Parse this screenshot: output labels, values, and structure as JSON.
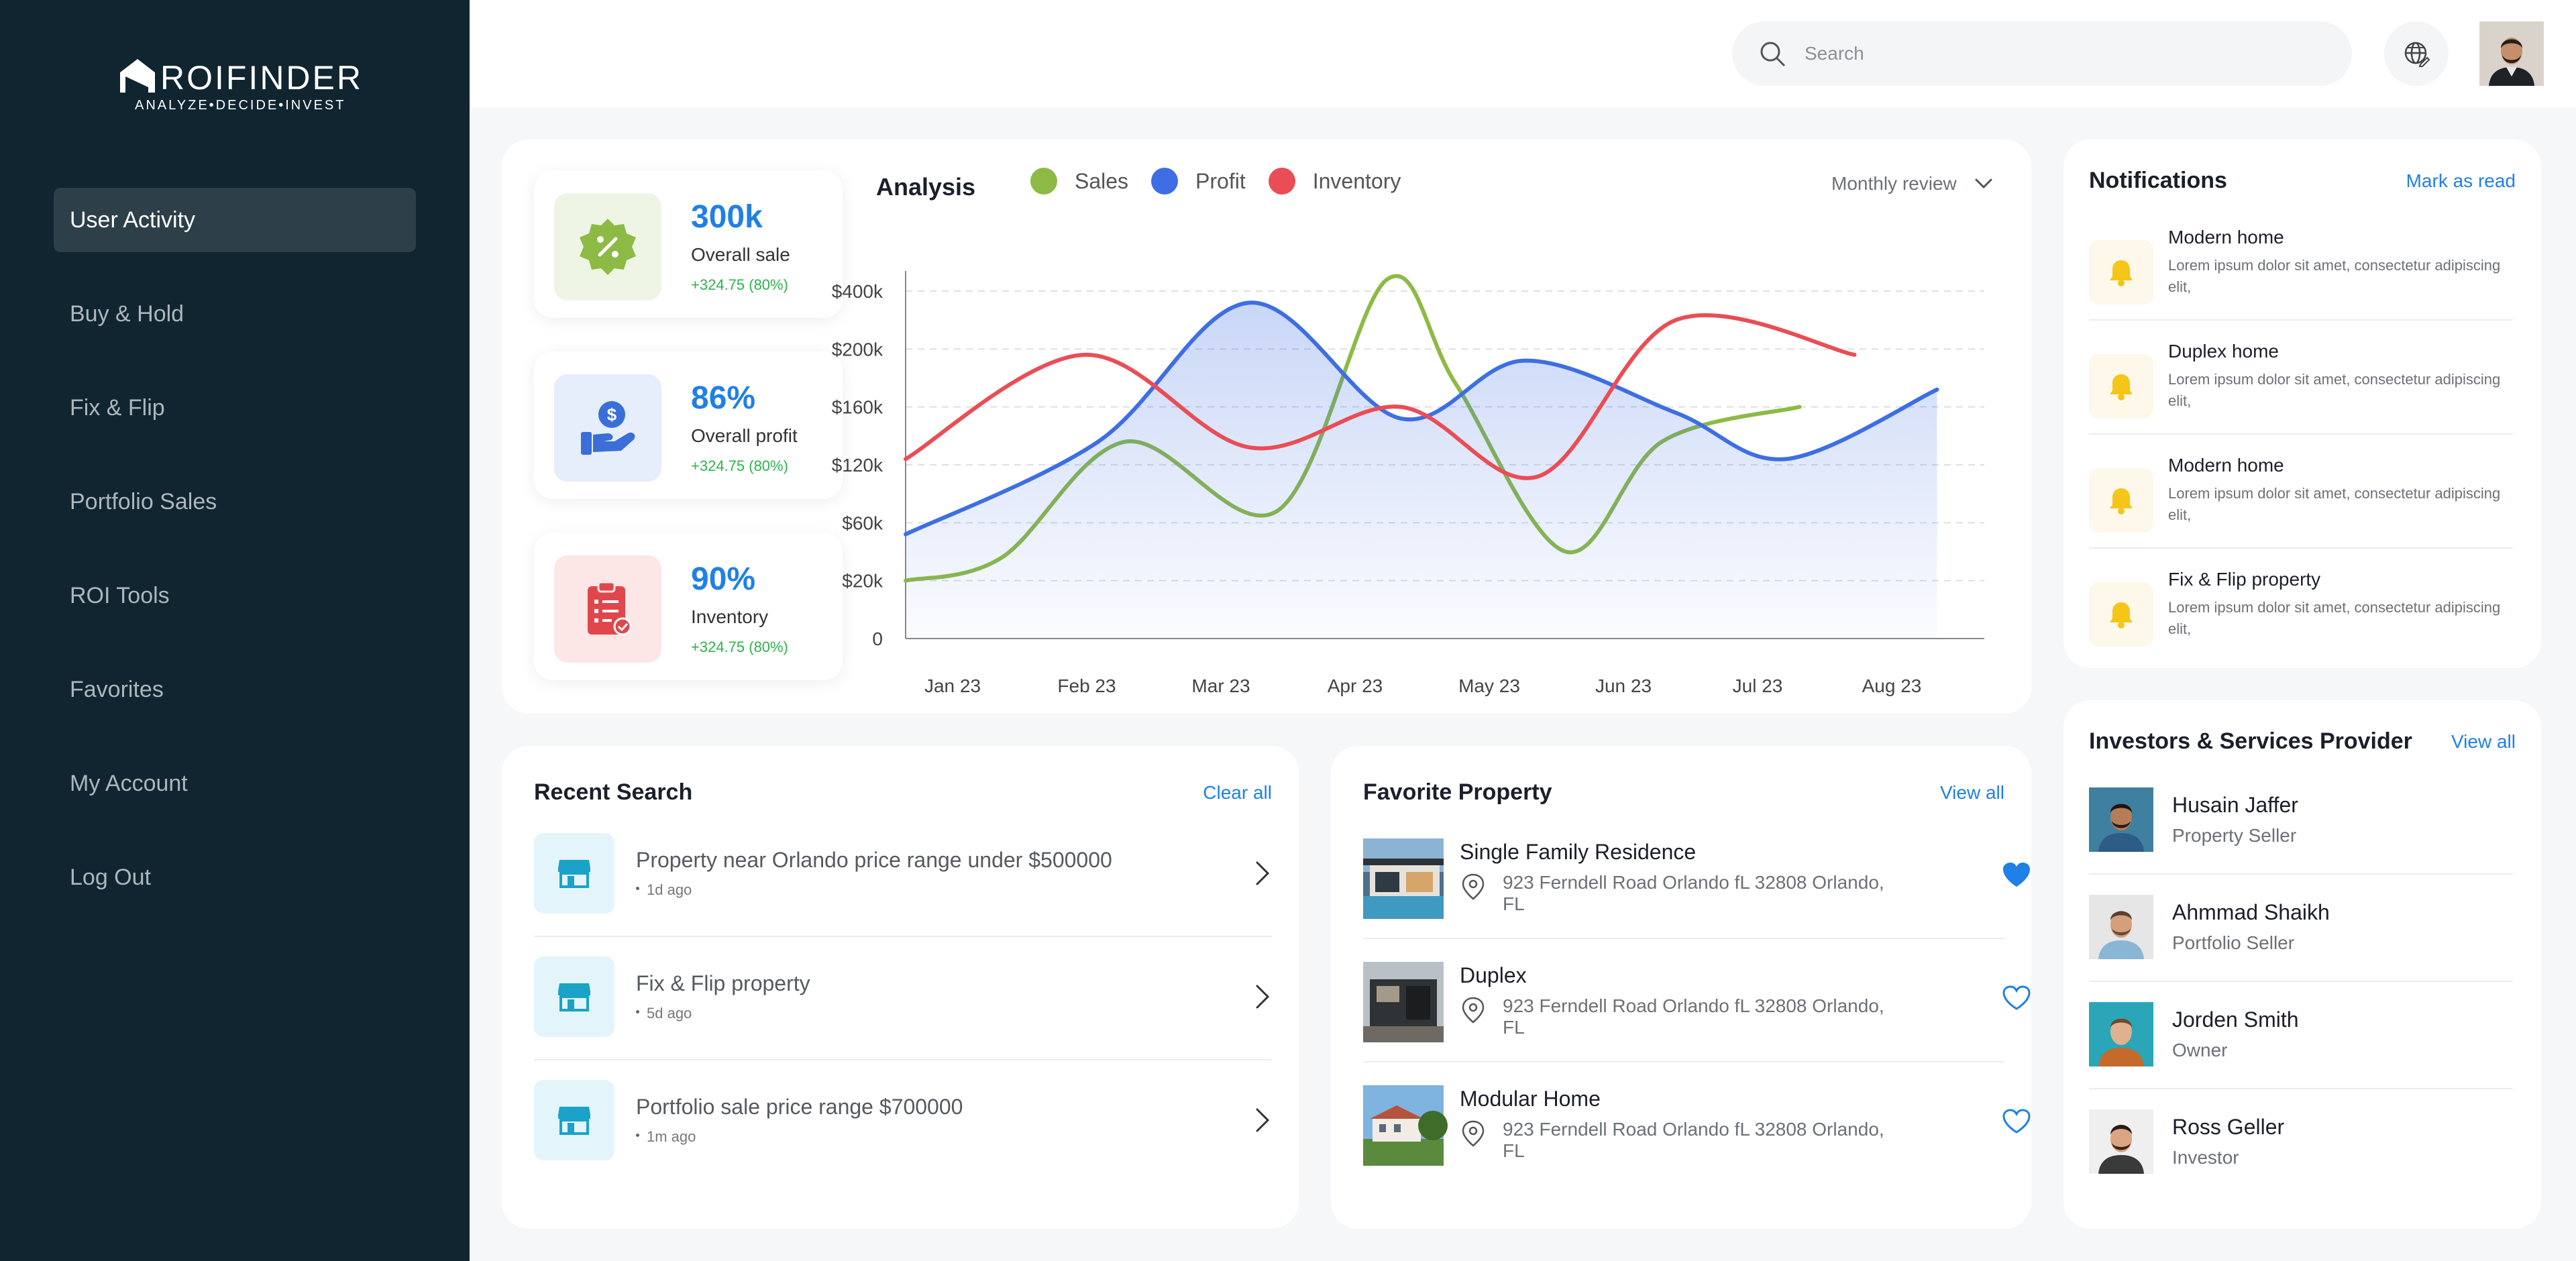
{
  "brand": {
    "name": "ROIFINDER",
    "tagline": "ANALYZE•DECIDE•INVEST"
  },
  "sidebar": {
    "items": [
      {
        "label": "User Activity",
        "active": true
      },
      {
        "label": "Buy & Hold"
      },
      {
        "label": "Fix & Flip"
      },
      {
        "label": "Portfolio Sales"
      },
      {
        "label": "ROI Tools"
      },
      {
        "label": "Favorites"
      },
      {
        "label": "My Account"
      },
      {
        "label": "Log Out"
      }
    ]
  },
  "topbar": {
    "search_placeholder": "Search",
    "globe_icon": "globe-edit-icon"
  },
  "stats": [
    {
      "value": "300k",
      "label": "Overall sale",
      "change": "+324.75 (80%)",
      "icon": "discount-badge-icon",
      "bg": "#eef5e4",
      "color": "#8cba45"
    },
    {
      "value": "86%",
      "label": "Overall profit",
      "change": "+324.75 (80%)",
      "icon": "hand-dollar-icon",
      "bg": "#e6edfb",
      "color": "#3a6fd8"
    },
    {
      "value": "90%",
      "label": "Inventory",
      "change": "+324.75 (80%)",
      "icon": "clipboard-check-icon",
      "bg": "#fde6e6",
      "color": "#e0474c"
    }
  ],
  "analysis": {
    "title": "Analysis",
    "review_label": "Monthly review"
  },
  "chart_data": {
    "type": "line",
    "title": "Analysis",
    "x": [
      "Jan 23",
      "Feb 23",
      "Mar 23",
      "Apr 23",
      "May 23",
      "Jun 23",
      "Jul 23",
      "Aug 23"
    ],
    "y_ticks": [
      "$400k",
      "$200k",
      "$160k",
      "$120k",
      "$60k",
      "$20k",
      "0"
    ],
    "grid": true,
    "legend_position": "top",
    "series": [
      {
        "name": "Sales",
        "color": "#8dba45",
        "points": [
          [
            0,
            1.0
          ],
          [
            0.7,
            1.4
          ],
          [
            1.6,
            3.4
          ],
          [
            2.7,
            2.2
          ],
          [
            3.5,
            6.2
          ],
          [
            4.0,
            4.4
          ],
          [
            4.8,
            1.5
          ],
          [
            5.5,
            3.4
          ],
          [
            6.5,
            4.0
          ]
        ]
      },
      {
        "name": "Profit",
        "color": "#3d6ee3",
        "points": [
          [
            0,
            1.8
          ],
          [
            1.4,
            3.4
          ],
          [
            2.5,
            5.8
          ],
          [
            3.6,
            3.8
          ],
          [
            4.5,
            4.8
          ],
          [
            5.6,
            3.9
          ],
          [
            6.4,
            3.1
          ],
          [
            7.5,
            4.3
          ]
        ]
      },
      {
        "name": "Inventory",
        "color": "#ea4d55",
        "points": [
          [
            0,
            3.1
          ],
          [
            1.3,
            4.9
          ],
          [
            2.5,
            3.3
          ],
          [
            3.6,
            4.0
          ],
          [
            4.6,
            2.8
          ],
          [
            5.6,
            5.5
          ],
          [
            6.9,
            4.9
          ]
        ]
      }
    ]
  },
  "recent_search": {
    "title": "Recent Search",
    "action": "Clear all",
    "items": [
      {
        "title": "Property near Orlando price range under $500000",
        "time": "1d ago"
      },
      {
        "title": "Fix & Flip property",
        "time": "5d ago"
      },
      {
        "title": "Portfolio sale price range $700000",
        "time": "1m ago"
      }
    ]
  },
  "favorite_property": {
    "title": "Favorite Property",
    "action": "View all",
    "items": [
      {
        "title": "Single Family Residence",
        "address": "923 Ferndell Road Orlando fL 32808 Orlando, FL",
        "liked": true
      },
      {
        "title": "Duplex",
        "address": "923 Ferndell Road Orlando fL 32808 Orlando, FL",
        "liked": false
      },
      {
        "title": "Modular Home",
        "address": "923 Ferndell Road Orlando fL 32808 Orlando, FL",
        "liked": false
      }
    ]
  },
  "notifications": {
    "title": "Notifications",
    "action": "Mark as read",
    "items": [
      {
        "title": "Modern home",
        "body": "Lorem ipsum dolor sit amet, consectetur adipiscing elit,"
      },
      {
        "title": "Duplex home",
        "body": "Lorem ipsum dolor sit amet, consectetur adipiscing elit,"
      },
      {
        "title": "Modern home",
        "body": "Lorem ipsum dolor sit amet, consectetur adipiscing elit,"
      },
      {
        "title": "Fix & Flip property",
        "body": "Lorem ipsum dolor sit amet, consectetur adipiscing elit,"
      }
    ]
  },
  "investors": {
    "title": "Investors & Services Provider",
    "action": "View all",
    "items": [
      {
        "name": "Husain Jaffer",
        "role": "Property Seller"
      },
      {
        "name": "Ahmmad Shaikh",
        "role": "Portfolio Seller"
      },
      {
        "name": "Jorden Smith",
        "role": "Owner"
      },
      {
        "name": "Ross Geller",
        "role": "Investor"
      }
    ]
  }
}
